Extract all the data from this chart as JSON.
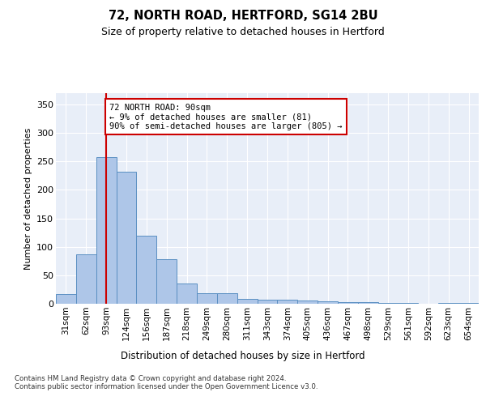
{
  "title1": "72, NORTH ROAD, HERTFORD, SG14 2BU",
  "title2": "Size of property relative to detached houses in Hertford",
  "xlabel": "Distribution of detached houses by size in Hertford",
  "ylabel": "Number of detached properties",
  "footnote": "Contains HM Land Registry data © Crown copyright and database right 2024.\nContains public sector information licensed under the Open Government Licence v3.0.",
  "bar_labels": [
    "31sqm",
    "62sqm",
    "93sqm",
    "124sqm",
    "156sqm",
    "187sqm",
    "218sqm",
    "249sqm",
    "280sqm",
    "311sqm",
    "343sqm",
    "374sqm",
    "405sqm",
    "436sqm",
    "467sqm",
    "498sqm",
    "529sqm",
    "561sqm",
    "592sqm",
    "623sqm",
    "654sqm"
  ],
  "bar_values": [
    17,
    87,
    258,
    232,
    120,
    78,
    35,
    18,
    18,
    9,
    7,
    7,
    5,
    4,
    3,
    3,
    2,
    2,
    0,
    2,
    2
  ],
  "bar_color": "#aec6e8",
  "bar_edge_color": "#5a8fc2",
  "highlight_bar_index": 2,
  "vline_color": "#cc0000",
  "annotation_text": "72 NORTH ROAD: 90sqm\n← 9% of detached houses are smaller (81)\n90% of semi-detached houses are larger (805) →",
  "annotation_box_color": "#ffffff",
  "annotation_box_edge": "#cc0000",
  "ylim": [
    0,
    370
  ],
  "yticks": [
    0,
    50,
    100,
    150,
    200,
    250,
    300,
    350
  ],
  "bg_color": "#e8eef8",
  "fig_bg": "#ffffff",
  "grid_color": "#ffffff"
}
